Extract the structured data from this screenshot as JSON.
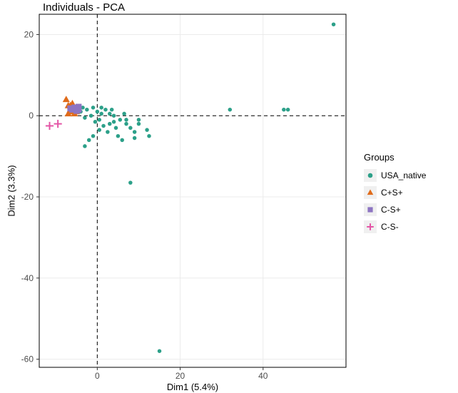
{
  "chart": {
    "type": "scatter",
    "title": "Individuals - PCA",
    "title_fontsize": 15,
    "xlabel": "Dim1 (5.4%)",
    "ylabel": "Dim2 (3.3%)",
    "label_fontsize": 13,
    "tick_fontsize": 12,
    "xlim": [
      -14,
      60
    ],
    "ylim": [
      -62,
      25
    ],
    "xticks": [
      0,
      20,
      40
    ],
    "yticks": [
      -60,
      -40,
      -20,
      0,
      20
    ],
    "background_color": "#ffffff",
    "panel_color": "#ffffff",
    "grid_color": "#ebebeb",
    "zero_line_color": "#000000",
    "zero_line_dash": "5,4",
    "panel_border_color": "#000000",
    "legend": {
      "title": "Groups",
      "title_fontsize": 13,
      "label_fontsize": 12,
      "items": [
        {
          "label": "USA_native",
          "marker": "circle",
          "color": "#2ca089"
        },
        {
          "label": "C+S+",
          "marker": "triangle",
          "color": "#e06b1a"
        },
        {
          "label": "C-S+",
          "marker": "square",
          "color": "#8d74c2"
        },
        {
          "label": "C-S-",
          "marker": "plus",
          "color": "#e455a6"
        }
      ]
    },
    "series": [
      {
        "name": "USA_native",
        "marker": "circle",
        "color": "#2ca089",
        "size": 5,
        "points": [
          [
            57,
            22.5
          ],
          [
            46,
            1.5
          ],
          [
            45,
            1.5
          ],
          [
            32,
            1.5
          ],
          [
            15,
            -58
          ],
          [
            8,
            -16.5
          ],
          [
            12.5,
            -5
          ],
          [
            12,
            -3.5
          ],
          [
            10,
            -1
          ],
          [
            10,
            -2
          ],
          [
            9,
            -4
          ],
          [
            9,
            -5.5
          ],
          [
            8,
            -3
          ],
          [
            7,
            -2
          ],
          [
            7,
            -1
          ],
          [
            6.5,
            0.5
          ],
          [
            6,
            -6
          ],
          [
            5.5,
            -1
          ],
          [
            5,
            -5
          ],
          [
            4.5,
            -3
          ],
          [
            4,
            -1.5
          ],
          [
            4,
            0
          ],
          [
            3.5,
            1.5
          ],
          [
            3,
            -2
          ],
          [
            3,
            0.5
          ],
          [
            2.5,
            -4
          ],
          [
            2,
            1.5
          ],
          [
            1.5,
            -2.5
          ],
          [
            1,
            2
          ],
          [
            1,
            0.5
          ],
          [
            0.5,
            -3.5
          ],
          [
            0.5,
            -1
          ],
          [
            0,
            1
          ],
          [
            -0.5,
            -1.5
          ],
          [
            -1,
            2
          ],
          [
            -1,
            -5
          ],
          [
            -1.5,
            0
          ],
          [
            -2,
            -6
          ],
          [
            -2.5,
            1.5
          ],
          [
            -3,
            -7.5
          ],
          [
            -3,
            -0.5
          ],
          [
            -3.5,
            2
          ],
          [
            -4,
            1
          ]
        ]
      },
      {
        "name": "C+S+",
        "marker": "triangle",
        "color": "#e06b1a",
        "size": 7,
        "points": [
          [
            -7.5,
            4
          ],
          [
            -7,
            2.5
          ],
          [
            -6.5,
            1.5
          ],
          [
            -6,
            3
          ],
          [
            -5.5,
            2
          ],
          [
            -5,
            1
          ],
          [
            -5.5,
            0.5
          ],
          [
            -6,
            1
          ],
          [
            -6.5,
            2.5
          ],
          [
            -7,
            0.5
          ]
        ]
      },
      {
        "name": "C-S+",
        "marker": "square",
        "color": "#8d74c2",
        "size": 7,
        "points": [
          [
            -5,
            2
          ],
          [
            -4.5,
            1.5
          ],
          [
            -5.5,
            2
          ],
          [
            -6,
            1.5
          ],
          [
            -5,
            1.2
          ],
          [
            -4.5,
            2.2
          ],
          [
            -6.5,
            1.8
          ]
        ]
      },
      {
        "name": "C-S-",
        "marker": "plus",
        "color": "#e455a6",
        "size": 7,
        "points": [
          [
            -11.5,
            -2.5
          ],
          [
            -9.5,
            -2
          ]
        ]
      }
    ]
  }
}
